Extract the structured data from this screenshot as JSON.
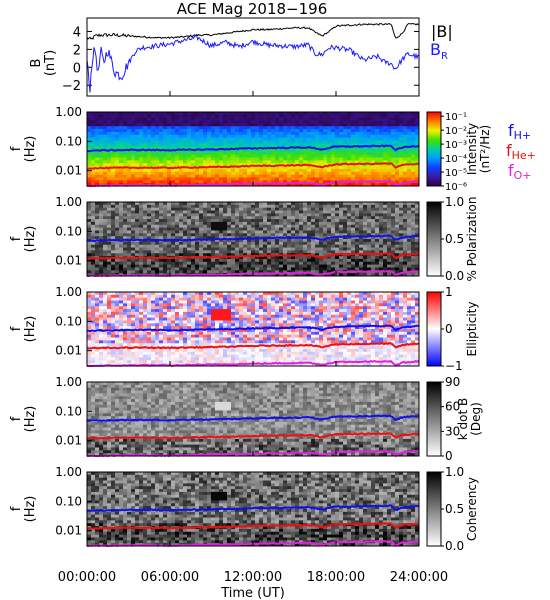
{
  "title": "ACE Mag 2018−196",
  "colors": {
    "b_total": "#000000",
    "b_radial": "#1a1aff",
    "f_hplus": "#1010ee",
    "f_heplus": "#ee1010",
    "f_oplus": "#e020e0"
  },
  "chart_data": [
    {
      "type": "line",
      "panel": "magnetic-field",
      "ylabel": "B",
      "yunit": "(nT)",
      "ylim": [
        -3.2,
        5.5
      ],
      "yticks": [
        "4",
        "2",
        "0",
        "−2"
      ],
      "ytick_values": [
        4,
        2,
        0,
        -2
      ],
      "xlim": [
        0,
        24
      ],
      "series": [
        {
          "name": "|B|",
          "x": [
            0,
            0.3,
            0.6,
            1,
            2,
            3,
            4,
            5,
            6,
            7,
            8,
            9,
            10,
            11,
            12,
            13,
            14,
            15,
            16,
            16.5,
            17,
            17.5,
            18,
            19,
            20,
            21,
            22,
            22.3,
            22.8,
            23.2,
            24
          ],
          "values": [
            3.3,
            3.1,
            3.5,
            3.6,
            3.6,
            3.5,
            3.4,
            3.3,
            3.3,
            3.4,
            3.6,
            3.6,
            3.8,
            4.0,
            4.2,
            4.2,
            4.3,
            4.4,
            4.4,
            3.9,
            3.5,
            4.0,
            4.6,
            4.7,
            4.8,
            4.8,
            4.8,
            3.2,
            3.8,
            4.8,
            4.8
          ]
        },
        {
          "name": "B_R",
          "x": [
            0,
            0.2,
            0.4,
            0.6,
            0.8,
            1,
            1.2,
            1.5,
            2,
            2.5,
            3,
            3.5,
            4,
            5,
            6,
            7,
            8,
            9,
            10,
            11,
            12,
            13,
            14,
            15,
            16,
            16.5,
            17,
            17.5,
            18,
            19,
            20,
            21,
            21.5,
            22,
            22.3,
            22.8,
            23.2,
            24
          ],
          "values": [
            0.8,
            -2.6,
            1.2,
            2.0,
            -0.8,
            1.8,
            0.5,
            2.0,
            -0.5,
            -1.0,
            0.5,
            1.8,
            2.2,
            2.4,
            2.6,
            3.0,
            3.3,
            2.4,
            2.8,
            2.3,
            2.9,
            2.5,
            2.4,
            2.3,
            2.5,
            1.5,
            1.4,
            2.2,
            2.2,
            1.9,
            0.8,
            1.2,
            0.6,
            0.4,
            -0.2,
            0.9,
            1.5,
            1.1
          ]
        }
      ],
      "legend": [
        "|B|",
        "B",
        "R"
      ]
    },
    {
      "type": "heatmap",
      "panel": "intensity",
      "ylabel": "f",
      "yunit": "(Hz)",
      "yscale": "log",
      "ylim": [
        0.003,
        1.0
      ],
      "yticks": [
        "1.00",
        "0.10",
        "0.01"
      ],
      "ytick_values": [
        1.0,
        0.1,
        0.01
      ],
      "colorbar": {
        "label": "Intensity",
        "unit": "(nT²/Hz)",
        "scale": "log",
        "ticks": [
          "10⁻¹",
          "10⁻²",
          "10⁻³",
          "10⁻⁴",
          "10⁻⁵",
          "10⁻⁶"
        ],
        "tick_values": [
          0.1,
          0.01,
          0.001,
          0.0001,
          1e-05,
          1e-06
        ],
        "range": [
          1e-06,
          0.2
        ]
      },
      "legend": [
        "f",
        "H+",
        "f",
        "He+",
        "f",
        "O+"
      ]
    },
    {
      "type": "heatmap",
      "panel": "polarization",
      "ylabel": "f",
      "yunit": "(Hz)",
      "yscale": "log",
      "yticks": [
        "1.00",
        "0.10",
        "0.01"
      ],
      "colorbar": {
        "label": "% Polarization",
        "ticks": [
          "1.0",
          "0.5",
          "0.0"
        ],
        "tick_values": [
          1.0,
          0.5,
          0.0
        ],
        "range": [
          0.0,
          1.0
        ]
      }
    },
    {
      "type": "heatmap",
      "panel": "ellipticity",
      "ylabel": "f",
      "yunit": "(Hz)",
      "yscale": "log",
      "yticks": [
        "1.00",
        "0.10",
        "0.01"
      ],
      "colorbar": {
        "label": "Ellipticity",
        "ticks": [
          "1",
          "0",
          "−1"
        ],
        "tick_values": [
          1,
          0,
          -1
        ],
        "range": [
          -1,
          1
        ]
      }
    },
    {
      "type": "heatmap",
      "panel": "k-dot-b",
      "ylabel": "f",
      "yunit": "(Hz)",
      "yscale": "log",
      "yticks": [
        "1.00",
        "0.10",
        "0.01"
      ],
      "colorbar": {
        "label": "k dot B",
        "unit": "(Deg)",
        "ticks": [
          "90",
          "60",
          "30",
          "0"
        ],
        "tick_values": [
          90,
          60,
          30,
          0
        ],
        "range": [
          0,
          90
        ]
      }
    },
    {
      "type": "heatmap",
      "panel": "coherency",
      "ylabel": "f",
      "yunit": "(Hz)",
      "yscale": "log",
      "yticks": [
        "1.00",
        "0.10",
        "0.01"
      ],
      "colorbar": {
        "label": "Coherency",
        "ticks": [
          "1.0",
          "0.5",
          "0.0"
        ],
        "tick_values": [
          1.0,
          0.5,
          0.0
        ],
        "range": [
          0.0,
          1.0
        ]
      }
    }
  ],
  "gyrofrequency_lines": {
    "x": [
      0,
      2,
      4,
      6,
      8,
      10,
      12,
      14,
      16,
      16.5,
      17,
      17.5,
      18,
      20,
      22,
      22.3,
      22.8,
      24
    ],
    "f_hplus": [
      0.048,
      0.05,
      0.051,
      0.05,
      0.052,
      0.054,
      0.058,
      0.06,
      0.062,
      0.058,
      0.052,
      0.06,
      0.066,
      0.068,
      0.07,
      0.05,
      0.062,
      0.07
    ],
    "f_heplus": [
      0.012,
      0.0125,
      0.0127,
      0.0125,
      0.013,
      0.0135,
      0.0145,
      0.015,
      0.0155,
      0.0145,
      0.013,
      0.015,
      0.0165,
      0.017,
      0.0175,
      0.0125,
      0.0155,
      0.0175
    ],
    "f_oplus": [
      0.003,
      0.0031,
      0.0032,
      0.0031,
      0.0033,
      0.0034,
      0.0036,
      0.0037,
      0.0039,
      0.0036,
      0.0033,
      0.0037,
      0.0041,
      0.0042,
      0.0044,
      0.0031,
      0.0039,
      0.0044
    ]
  },
  "features": [
    {
      "panel": "polarization",
      "x": 9.6,
      "f": 0.16,
      "kind": "dark-patch"
    },
    {
      "panel": "ellipticity",
      "x": 9.7,
      "f": 0.16,
      "kind": "red-patch"
    },
    {
      "panel": "k-dot-b",
      "x": 9.8,
      "f": 0.14,
      "kind": "light-patch"
    },
    {
      "panel": "coherency",
      "x": 9.6,
      "f": 0.14,
      "kind": "dark-patch"
    }
  ],
  "xaxis": {
    "label": "Time (UT)",
    "ticks": [
      "00:00:00",
      "06:00:00",
      "12:00:00",
      "18:00:00",
      "24:00:00"
    ],
    "tick_values": [
      0,
      6,
      12,
      18,
      24
    ]
  }
}
